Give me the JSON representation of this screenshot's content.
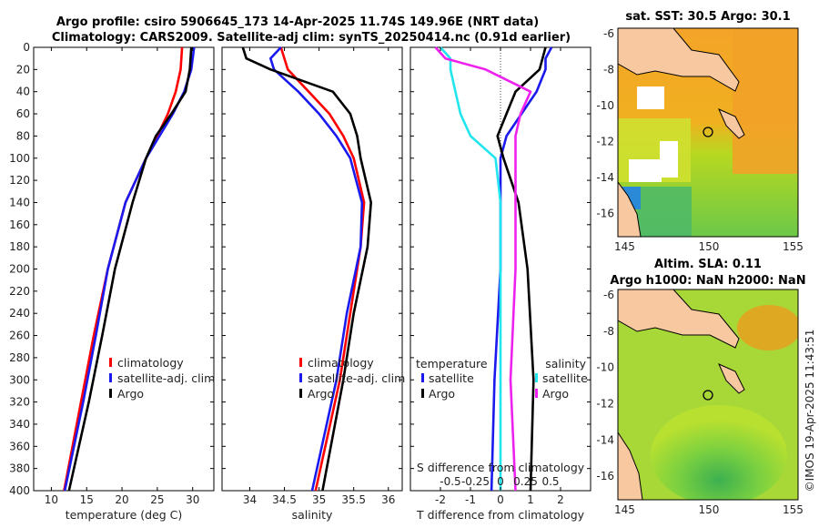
{
  "title": {
    "line1": "Argo profile: csiro 5906645_173 14-Apr-2025 11.74S 149.96E (NRT data)",
    "line2": "Climatology: CARS2009. Satellite-adj clim: synTS_20250414.nc (0.91d earlier)"
  },
  "colors": {
    "climatology": "#ff0000",
    "satellite": "#1a1aee",
    "argo": "#000000",
    "sat_salinity": "#22e5ee",
    "magenta": "#ee22ee",
    "land": "#f8c8a0",
    "ocean_sst": "#f0a020"
  },
  "legend_main": [
    {
      "name": "climatology",
      "color": "#ff0000"
    },
    {
      "name": "satellite-adj. clim",
      "color": "#1a1aee"
    },
    {
      "name": "Argo",
      "color": "#000000"
    }
  ],
  "legend_diff": {
    "temperature_header": "temperature",
    "salinity_header": "salinity",
    "temp_items": [
      {
        "name": "satellite",
        "color": "#1a1aee"
      },
      {
        "name": "Argo",
        "color": "#000000"
      }
    ],
    "sal_items": [
      {
        "name": "satellite",
        "color": "#22e5ee"
      },
      {
        "name": "Argo",
        "color": "#ee22ee"
      }
    ]
  },
  "maps": {
    "sst_title": "sat. SST: 30.5 Argo: 30.1",
    "sla_title1": "Altim. SLA: 0.11",
    "sla_title2": "Argo h1000: NaN h2000: NaN",
    "lon_ticks": [
      "145",
      "150",
      "155"
    ],
    "lat_ticks": [
      "-6",
      "-8",
      "-10",
      "-12",
      "-14",
      "-16"
    ],
    "float_marker": {
      "lon": 149.96,
      "lat": -11.74
    }
  },
  "watermark": "©IMOS 19-Apr-2025 11:43:51",
  "chart_data": [
    {
      "type": "line",
      "name": "temperature",
      "xlabel": "temperature (deg C)",
      "ylabel": "depth",
      "xlim": [
        7.5,
        33
      ],
      "ylim": [
        0,
        400
      ],
      "xticks": [
        "10",
        "15",
        "20",
        "25",
        "30"
      ],
      "yticks": [
        "0",
        "20",
        "40",
        "60",
        "80",
        "100",
        "120",
        "140",
        "160",
        "180",
        "200",
        "220",
        "240",
        "260",
        "280",
        "300",
        "320",
        "340",
        "360",
        "380",
        "400"
      ],
      "series": [
        {
          "name": "climatology",
          "depth": [
            0,
            20,
            40,
            60,
            80,
            100,
            140,
            200,
            260,
            320,
            400
          ],
          "values": [
            28.5,
            28.3,
            27.6,
            26.5,
            25.0,
            23.4,
            20.5,
            18.0,
            16.0,
            14.2,
            11.8
          ]
        },
        {
          "name": "satellite-adj. clim",
          "depth": [
            0,
            20,
            40,
            60,
            80,
            100,
            140,
            200,
            260,
            320,
            400
          ],
          "values": [
            30.2,
            29.8,
            28.8,
            27.2,
            25.3,
            23.4,
            20.5,
            18.0,
            16.3,
            14.5,
            11.9
          ]
        },
        {
          "name": "Argo",
          "depth": [
            0,
            20,
            40,
            60,
            80,
            100,
            140,
            200,
            260,
            320,
            400
          ],
          "values": [
            29.8,
            29.6,
            29.0,
            27.0,
            24.8,
            23.4,
            21.5,
            19.0,
            17.2,
            15.3,
            12.5
          ]
        }
      ]
    },
    {
      "type": "line",
      "name": "salinity",
      "xlabel": "salinity",
      "ylabel": "depth",
      "xlim": [
        33.6,
        36.2
      ],
      "ylim": [
        0,
        400
      ],
      "xticks": [
        "34",
        "34.5",
        "35",
        "35.5",
        "36"
      ],
      "series": [
        {
          "name": "climatology",
          "depth": [
            0,
            10,
            20,
            40,
            60,
            80,
            100,
            140,
            180,
            240,
            300,
            400
          ],
          "values": [
            34.45,
            34.5,
            34.55,
            34.85,
            35.15,
            35.35,
            35.5,
            35.65,
            35.6,
            35.45,
            35.3,
            34.95
          ]
        },
        {
          "name": "satellite-adj. clim",
          "depth": [
            0,
            10,
            20,
            40,
            60,
            80,
            100,
            140,
            180,
            240,
            300,
            400
          ],
          "values": [
            34.45,
            34.3,
            34.35,
            34.7,
            35.0,
            35.25,
            35.45,
            35.62,
            35.6,
            35.4,
            35.25,
            34.9
          ]
        },
        {
          "name": "Argo",
          "depth": [
            0,
            10,
            20,
            40,
            60,
            80,
            100,
            140,
            180,
            240,
            300,
            400
          ],
          "values": [
            33.9,
            33.95,
            34.3,
            35.2,
            35.45,
            35.55,
            35.6,
            35.75,
            35.7,
            35.5,
            35.35,
            35.05
          ]
        }
      ]
    },
    {
      "type": "line",
      "name": "difference from climatology",
      "xlabel": "T difference from climatology",
      "x2label": "S difference from climatology",
      "xlim": [
        -3,
        3
      ],
      "ylim": [
        0,
        400
      ],
      "xticks": [
        "-2",
        "-1",
        "0",
        "1",
        "2"
      ],
      "x2ticks": [
        "-0.5",
        "-0.25",
        "0",
        "0.25",
        "0.5"
      ],
      "series": [
        {
          "name": "temperature satellite",
          "depth": [
            0,
            10,
            20,
            40,
            60,
            80,
            100,
            140,
            200,
            300,
            400
          ],
          "values": [
            1.7,
            1.5,
            1.5,
            1.2,
            0.7,
            0.2,
            0.0,
            0.0,
            0.0,
            -0.2,
            -0.3
          ]
        },
        {
          "name": "temperature Argo",
          "depth": [
            0,
            10,
            20,
            40,
            60,
            80,
            100,
            140,
            200,
            300,
            400
          ],
          "values": [
            1.5,
            1.4,
            1.3,
            0.5,
            0.2,
            -0.1,
            0.1,
            0.6,
            0.9,
            1.1,
            1.0
          ]
        },
        {
          "name": "salinity satellite",
          "depth": [
            0,
            10,
            20,
            40,
            60,
            80,
            100,
            140,
            200,
            300,
            400
          ],
          "values": [
            -0.6,
            -0.5,
            -0.5,
            -0.45,
            -0.4,
            -0.3,
            -0.05,
            0.0,
            0.0,
            0.0,
            0.0
          ]
        },
        {
          "name": "salinity Argo",
          "depth": [
            0,
            10,
            20,
            40,
            60,
            80,
            100,
            140,
            200,
            300,
            400
          ],
          "values": [
            -0.65,
            -0.55,
            -0.15,
            0.3,
            0.2,
            0.15,
            0.15,
            0.15,
            0.15,
            0.1,
            0.15
          ]
        }
      ]
    }
  ]
}
